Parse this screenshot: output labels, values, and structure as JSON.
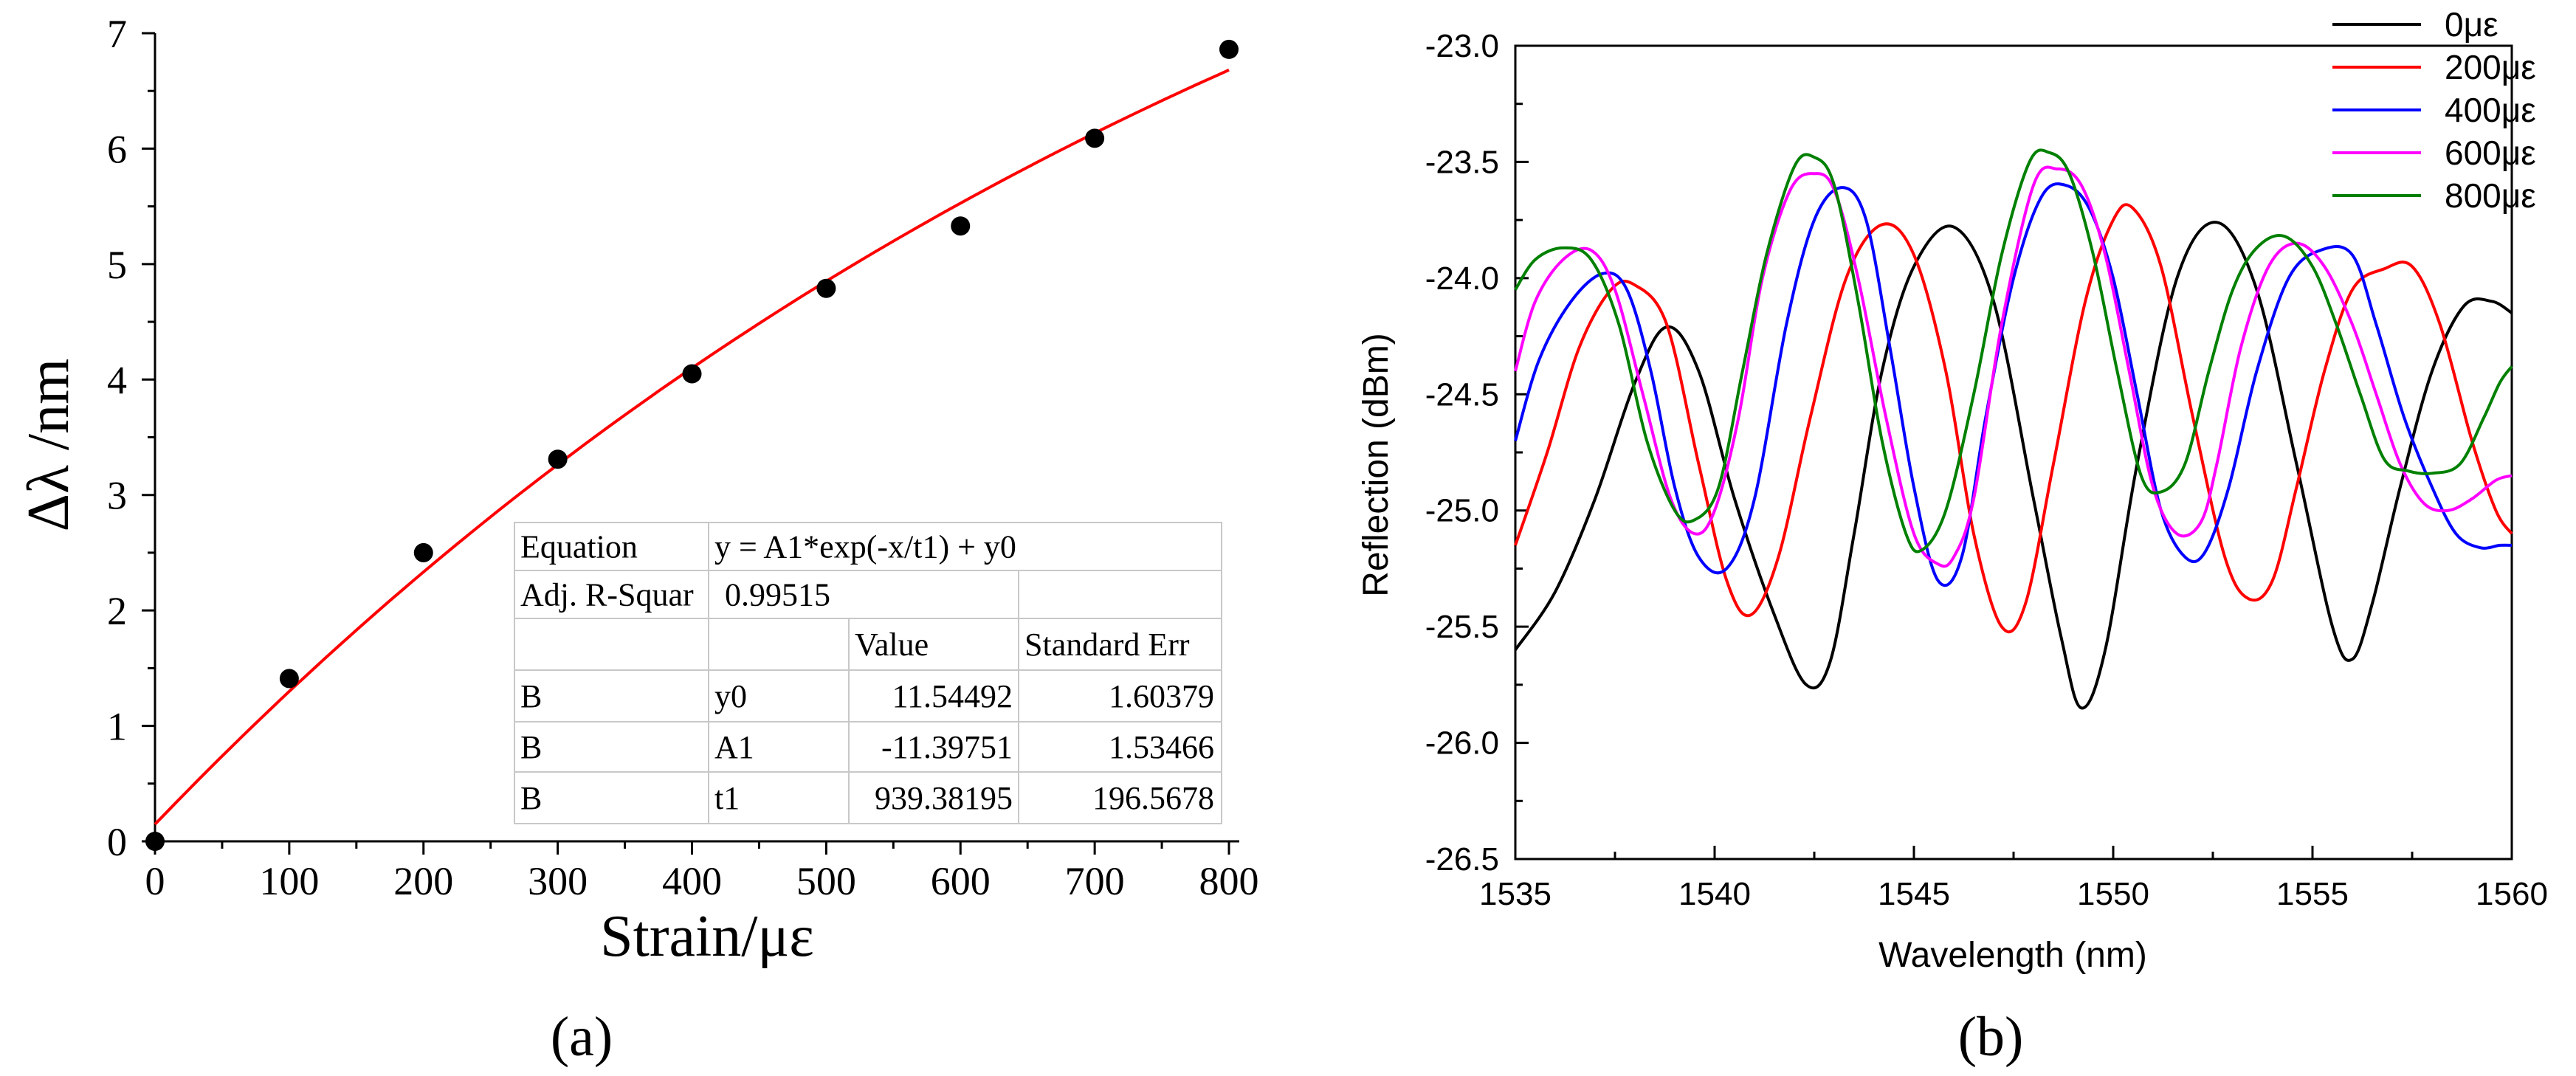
{
  "chart_data": [
    {
      "type": "scatter",
      "panel_label": "(a)",
      "xlabel": "Strain/με",
      "ylabel": "Δλ /nm",
      "xlim": [
        0,
        800
      ],
      "ylim": [
        0,
        7
      ],
      "x_ticks": [
        "0",
        "100",
        "200",
        "300",
        "400",
        "500",
        "600",
        "700",
        "800"
      ],
      "y_ticks": [
        "0",
        "1",
        "2",
        "3",
        "4",
        "5",
        "6",
        "7"
      ],
      "grid": false,
      "points": {
        "x": [
          0,
          100,
          200,
          300,
          400,
          500,
          600,
          700,
          800
        ],
        "y": [
          0.0,
          1.41,
          2.5,
          3.31,
          4.05,
          4.79,
          5.33,
          6.09,
          6.86
        ],
        "color": "#000000"
      },
      "fit": {
        "color": "#ff0000",
        "y0": 11.54492,
        "A1": -11.39751,
        "t1": 939.38195
      },
      "fit_table": {
        "equation_label": "Equation",
        "equation": "y = A1*exp(-x/t1) + y0",
        "r2_label": "Adj. R-Squar",
        "r2_value": "0.99515",
        "col_value": "Value",
        "col_err": "Standard Err",
        "rows": [
          {
            "group": "B",
            "param": "y0",
            "value": "11.54492",
            "err": "1.60379"
          },
          {
            "group": "B",
            "param": "A1",
            "value": "-11.39751",
            "err": "1.53466"
          },
          {
            "group": "B",
            "param": "t1",
            "value": "939.38195",
            "err": "196.5678"
          }
        ]
      }
    },
    {
      "type": "line",
      "panel_label": "(b)",
      "xlabel": "Wavelength (nm)",
      "ylabel": "Reflection (dBm)",
      "xlim": [
        1535,
        1560
      ],
      "ylim": [
        -26.5,
        -23.0
      ],
      "x_ticks": [
        "1535",
        "1540",
        "1545",
        "1550",
        "1555",
        "1560"
      ],
      "y_ticks": [
        "-23.0",
        "-23.5",
        "-24.0",
        "-24.5",
        "-25.0",
        "-25.5",
        "-26.0",
        "-26.5"
      ],
      "grid": false,
      "legend_position": "top-right",
      "series": [
        {
          "name": "0με",
          "color": "#000000",
          "x": [
            1535.0,
            1536.0,
            1537.0,
            1538.0,
            1538.8,
            1539.6,
            1540.5,
            1541.5,
            1542.3,
            1542.9,
            1543.5,
            1544.2,
            1545.0,
            1546.0,
            1547.0,
            1548.0,
            1548.7,
            1549.2,
            1549.8,
            1550.6,
            1551.6,
            1552.6,
            1553.6,
            1554.6,
            1555.5,
            1556.0,
            1556.5,
            1557.2,
            1558.0,
            1558.8,
            1559.5,
            1560.0
          ],
          "y": [
            -25.6,
            -25.35,
            -24.95,
            -24.45,
            -24.21,
            -24.4,
            -24.95,
            -25.45,
            -25.75,
            -25.65,
            -25.1,
            -24.4,
            -23.95,
            -23.78,
            -24.1,
            -24.95,
            -25.55,
            -25.85,
            -25.6,
            -24.8,
            -24.0,
            -23.76,
            -24.05,
            -24.8,
            -25.5,
            -25.64,
            -25.4,
            -24.9,
            -24.4,
            -24.12,
            -24.1,
            -24.15
          ]
        },
        {
          "name": "200με",
          "color": "#ff0000",
          "x": [
            1535.0,
            1535.8,
            1536.6,
            1537.4,
            1538.0,
            1538.8,
            1539.6,
            1540.3,
            1540.9,
            1541.6,
            1542.4,
            1543.3,
            1544.2,
            1545.0,
            1545.8,
            1546.5,
            1547.2,
            1547.8,
            1548.5,
            1549.3,
            1550.0,
            1550.5,
            1551.2,
            1552.0,
            1552.8,
            1553.4,
            1554.0,
            1554.6,
            1555.3,
            1556.0,
            1556.8,
            1557.5,
            1558.2,
            1559.0,
            1559.6,
            1560.0
          ],
          "y": [
            -25.15,
            -24.75,
            -24.3,
            -24.05,
            -24.03,
            -24.2,
            -24.8,
            -25.3,
            -25.45,
            -25.2,
            -24.6,
            -24.0,
            -23.77,
            -23.9,
            -24.4,
            -25.1,
            -25.5,
            -25.4,
            -24.8,
            -24.1,
            -23.75,
            -23.7,
            -23.95,
            -24.6,
            -25.2,
            -25.38,
            -25.3,
            -24.9,
            -24.4,
            -24.05,
            -23.96,
            -23.95,
            -24.2,
            -24.7,
            -25.0,
            -25.1
          ]
        },
        {
          "name": "400με",
          "color": "#0000ff",
          "x": [
            1535.0,
            1535.6,
            1536.4,
            1537.2,
            1537.8,
            1538.4,
            1539.0,
            1539.6,
            1540.3,
            1541.0,
            1541.8,
            1542.5,
            1543.2,
            1543.8,
            1544.4,
            1545.0,
            1545.6,
            1546.2,
            1546.8,
            1547.5,
            1548.2,
            1548.8,
            1549.4,
            1550.0,
            1550.6,
            1551.2,
            1551.8,
            1552.3,
            1552.9,
            1553.6,
            1554.4,
            1555.2,
            1556.0,
            1556.6,
            1557.3,
            1558.0,
            1558.6,
            1559.2,
            1559.7,
            1560.0
          ],
          "y": [
            -24.7,
            -24.35,
            -24.1,
            -23.98,
            -24.05,
            -24.4,
            -24.9,
            -25.2,
            -25.25,
            -24.95,
            -24.2,
            -23.75,
            -23.61,
            -23.75,
            -24.3,
            -24.9,
            -25.3,
            -25.2,
            -24.6,
            -24.0,
            -23.65,
            -23.6,
            -23.7,
            -24.0,
            -24.5,
            -25.0,
            -25.2,
            -25.18,
            -24.9,
            -24.4,
            -24.0,
            -23.88,
            -23.9,
            -24.2,
            -24.6,
            -24.9,
            -25.1,
            -25.16,
            -25.15,
            -25.15
          ]
        },
        {
          "name": "600με",
          "color": "#ff00ff",
          "x": [
            1535.0,
            1535.5,
            1536.2,
            1536.9,
            1537.5,
            1538.2,
            1538.9,
            1539.5,
            1540.0,
            1540.6,
            1541.2,
            1541.9,
            1542.5,
            1543.0,
            1543.6,
            1544.3,
            1545.0,
            1545.6,
            1546.0,
            1546.5,
            1547.2,
            1548.0,
            1548.6,
            1549.2,
            1549.8,
            1550.4,
            1551.0,
            1551.6,
            1552.2,
            1552.6,
            1553.2,
            1553.9,
            1554.6,
            1555.3,
            1556.0,
            1556.6,
            1557.2,
            1557.8,
            1558.4,
            1559.0,
            1559.6,
            1560.0
          ],
          "y": [
            -24.4,
            -24.1,
            -23.92,
            -23.88,
            -24.05,
            -24.5,
            -24.95,
            -25.1,
            -25.0,
            -24.6,
            -24.0,
            -23.62,
            -23.55,
            -23.62,
            -24.0,
            -24.6,
            -25.1,
            -25.23,
            -25.2,
            -24.95,
            -24.2,
            -23.6,
            -23.53,
            -23.6,
            -23.9,
            -24.4,
            -24.9,
            -25.1,
            -25.05,
            -24.8,
            -24.3,
            -23.95,
            -23.85,
            -23.95,
            -24.2,
            -24.5,
            -24.8,
            -24.97,
            -25.0,
            -24.95,
            -24.87,
            -24.85
          ]
        },
        {
          "name": "800με",
          "color": "#008000",
          "x": [
            1535.0,
            1535.5,
            1536.2,
            1536.9,
            1537.6,
            1538.3,
            1539.0,
            1539.5,
            1540.1,
            1540.7,
            1541.3,
            1542.0,
            1542.5,
            1543.0,
            1543.6,
            1544.2,
            1544.8,
            1545.2,
            1545.8,
            1546.5,
            1547.2,
            1547.9,
            1548.4,
            1548.9,
            1549.5,
            1550.1,
            1550.7,
            1551.2,
            1551.8,
            1552.4,
            1553.0,
            1553.6,
            1554.3,
            1555.0,
            1555.6,
            1556.2,
            1556.8,
            1557.4,
            1558.0,
            1558.7,
            1559.3,
            1559.7,
            1560.0
          ],
          "y": [
            -24.05,
            -23.92,
            -23.87,
            -23.92,
            -24.2,
            -24.7,
            -25.0,
            -25.04,
            -24.9,
            -24.4,
            -23.9,
            -23.52,
            -23.48,
            -23.6,
            -24.1,
            -24.7,
            -25.1,
            -25.17,
            -25.0,
            -24.5,
            -23.9,
            -23.5,
            -23.46,
            -23.55,
            -23.9,
            -24.4,
            -24.85,
            -24.92,
            -24.8,
            -24.4,
            -24.05,
            -23.87,
            -23.82,
            -23.95,
            -24.2,
            -24.5,
            -24.78,
            -24.83,
            -24.84,
            -24.8,
            -24.6,
            -24.45,
            -24.38
          ]
        }
      ]
    }
  ]
}
